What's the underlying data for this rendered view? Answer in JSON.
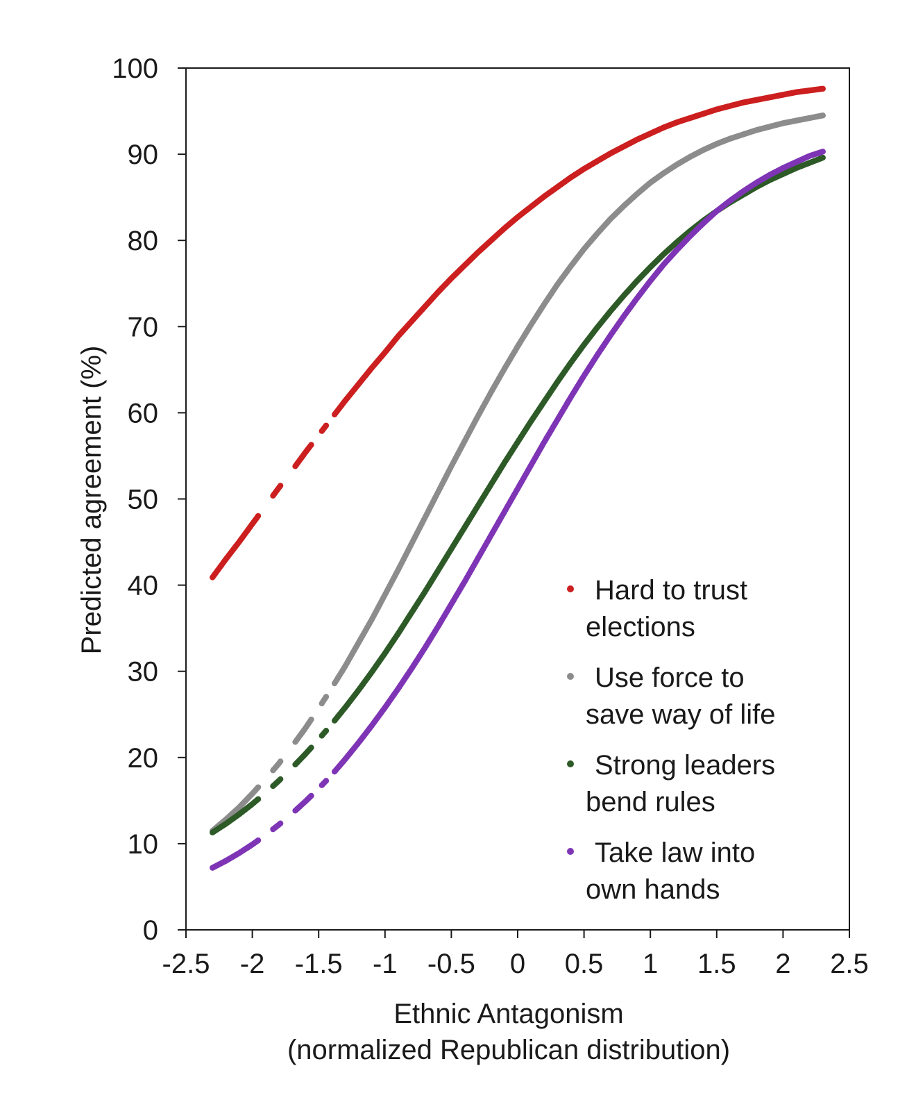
{
  "chart_data": {
    "type": "scatter",
    "xlabel": [
      "Ethnic Antagonism",
      "(normalized Republican distribution)"
    ],
    "ylabel": "Predicted agreement (%)",
    "xlim": [
      -2.5,
      2.5
    ],
    "ylim": [
      0,
      100
    ],
    "xticks": [
      -2.5,
      -2,
      -1.5,
      -1,
      -0.5,
      0,
      0.5,
      1,
      1.5,
      2,
      2.5
    ],
    "xtick_labels": [
      "-2.5",
      "-2",
      "-1.5",
      "-1",
      "-0.5",
      "0",
      "0.5",
      "1",
      "1.5",
      "2",
      "2.5"
    ],
    "yticks": [
      0,
      10,
      20,
      30,
      40,
      50,
      60,
      70,
      80,
      90,
      100
    ],
    "ytick_labels": [
      "0",
      "10",
      "20",
      "30",
      "40",
      "50",
      "60",
      "70",
      "80",
      "90",
      "100"
    ],
    "grid": false,
    "legend_position": "lower-right",
    "gaps": [
      [
        -1.95,
        -1.85
      ],
      [
        -1.78,
        -1.68
      ],
      [
        -1.55,
        -1.48
      ],
      [
        -1.44,
        -1.38
      ]
    ],
    "series": [
      {
        "name": "Hard to trust elections",
        "legend_lines": [
          "Hard to trust",
          "elections"
        ],
        "color": "#cc1f1f",
        "x": [
          -2.3,
          -2.2,
          -2.1,
          -2.0,
          -1.9,
          -1.8,
          -1.7,
          -1.6,
          -1.5,
          -1.4,
          -1.3,
          -1.2,
          -1.1,
          -1.0,
          -0.9,
          -0.8,
          -0.7,
          -0.6,
          -0.5,
          -0.4,
          -0.3,
          -0.2,
          -0.1,
          0.0,
          0.1,
          0.2,
          0.3,
          0.4,
          0.5,
          0.6,
          0.7,
          0.8,
          0.9,
          1.0,
          1.1,
          1.2,
          1.3,
          1.4,
          1.5,
          1.6,
          1.7,
          1.8,
          1.9,
          2.0,
          2.1,
          2.2,
          2.3
        ],
        "y": [
          40.9,
          43.0,
          45.0,
          47.1,
          49.2,
          51.3,
          53.3,
          55.4,
          57.4,
          59.4,
          61.4,
          63.3,
          65.2,
          67.0,
          68.9,
          70.6,
          72.3,
          74.0,
          75.6,
          77.1,
          78.6,
          80.0,
          81.4,
          82.7,
          83.9,
          85.1,
          86.2,
          87.3,
          88.3,
          89.2,
          90.1,
          90.9,
          91.7,
          92.4,
          93.1,
          93.7,
          94.2,
          94.7,
          95.2,
          95.6,
          96.0,
          96.3,
          96.6,
          96.9,
          97.2,
          97.4,
          97.6
        ]
      },
      {
        "name": "Use force to save way of life",
        "legend_lines": [
          "Use force to",
          "save way of life"
        ],
        "color": "#8c8c8c",
        "x": [
          -2.3,
          -2.2,
          -2.1,
          -2.0,
          -1.9,
          -1.8,
          -1.7,
          -1.6,
          -1.5,
          -1.4,
          -1.3,
          -1.2,
          -1.1,
          -1.0,
          -0.9,
          -0.8,
          -0.7,
          -0.6,
          -0.5,
          -0.4,
          -0.3,
          -0.2,
          -0.1,
          0.0,
          0.1,
          0.2,
          0.3,
          0.4,
          0.5,
          0.6,
          0.7,
          0.8,
          0.9,
          1.0,
          1.1,
          1.2,
          1.3,
          1.4,
          1.5,
          1.6,
          1.7,
          1.8,
          1.9,
          2.0,
          2.1,
          2.2,
          2.3
        ],
        "y": [
          11.5,
          12.8,
          14.2,
          15.8,
          17.5,
          19.3,
          21.3,
          23.4,
          25.7,
          28.1,
          30.6,
          33.3,
          36.0,
          38.9,
          41.8,
          44.8,
          47.8,
          50.8,
          53.8,
          56.7,
          59.6,
          62.4,
          65.1,
          67.7,
          70.2,
          72.6,
          74.9,
          77.0,
          79.0,
          80.8,
          82.5,
          84.0,
          85.4,
          86.7,
          87.8,
          88.8,
          89.7,
          90.5,
          91.2,
          91.8,
          92.3,
          92.8,
          93.2,
          93.6,
          93.9,
          94.2,
          94.5
        ]
      },
      {
        "name": "Strong leaders bend rules",
        "legend_lines": [
          "Strong leaders",
          "bend rules"
        ],
        "color": "#2d5a27",
        "x": [
          -2.3,
          -2.2,
          -2.1,
          -2.0,
          -1.9,
          -1.8,
          -1.7,
          -1.6,
          -1.5,
          -1.4,
          -1.3,
          -1.2,
          -1.1,
          -1.0,
          -0.9,
          -0.8,
          -0.7,
          -0.6,
          -0.5,
          -0.4,
          -0.3,
          -0.2,
          -0.1,
          0.0,
          0.1,
          0.2,
          0.3,
          0.4,
          0.5,
          0.6,
          0.7,
          0.8,
          0.9,
          1.0,
          1.1,
          1.2,
          1.3,
          1.4,
          1.5,
          1.6,
          1.7,
          1.8,
          1.9,
          2.0,
          2.1,
          2.2,
          2.3
        ],
        "y": [
          11.3,
          12.3,
          13.4,
          14.6,
          15.9,
          17.3,
          18.8,
          20.4,
          22.1,
          23.9,
          25.8,
          27.8,
          29.9,
          32.1,
          34.4,
          36.8,
          39.2,
          41.7,
          44.2,
          46.7,
          49.2,
          51.7,
          54.2,
          56.6,
          59.0,
          61.3,
          63.6,
          65.8,
          67.9,
          69.9,
          71.8,
          73.6,
          75.3,
          76.9,
          78.4,
          79.8,
          81.1,
          82.3,
          83.4,
          84.4,
          85.3,
          86.2,
          87.0,
          87.7,
          88.4,
          89.0,
          89.6
        ]
      },
      {
        "name": "Take law into own hands",
        "legend_lines": [
          "Take law into",
          "own hands"
        ],
        "color": "#7e35b5",
        "x": [
          -2.3,
          -2.2,
          -2.1,
          -2.0,
          -1.9,
          -1.8,
          -1.7,
          -1.6,
          -1.5,
          -1.4,
          -1.3,
          -1.2,
          -1.1,
          -1.0,
          -0.9,
          -0.8,
          -0.7,
          -0.6,
          -0.5,
          -0.4,
          -0.3,
          -0.2,
          -0.1,
          0.0,
          0.1,
          0.2,
          0.3,
          0.4,
          0.5,
          0.6,
          0.7,
          0.8,
          0.9,
          1.0,
          1.1,
          1.2,
          1.3,
          1.4,
          1.5,
          1.6,
          1.7,
          1.8,
          1.9,
          2.0,
          2.1,
          2.2,
          2.3
        ],
        "y": [
          7.2,
          8.0,
          8.9,
          9.9,
          11.0,
          12.2,
          13.5,
          14.9,
          16.4,
          18.0,
          19.8,
          21.7,
          23.7,
          25.8,
          28.0,
          30.3,
          32.7,
          35.2,
          37.8,
          40.4,
          43.1,
          45.8,
          48.5,
          51.2,
          53.9,
          56.6,
          59.2,
          61.8,
          64.3,
          66.7,
          69.0,
          71.2,
          73.3,
          75.3,
          77.2,
          78.9,
          80.5,
          82.0,
          83.4,
          84.6,
          85.7,
          86.7,
          87.6,
          88.4,
          89.1,
          89.8,
          90.3
        ]
      }
    ]
  }
}
